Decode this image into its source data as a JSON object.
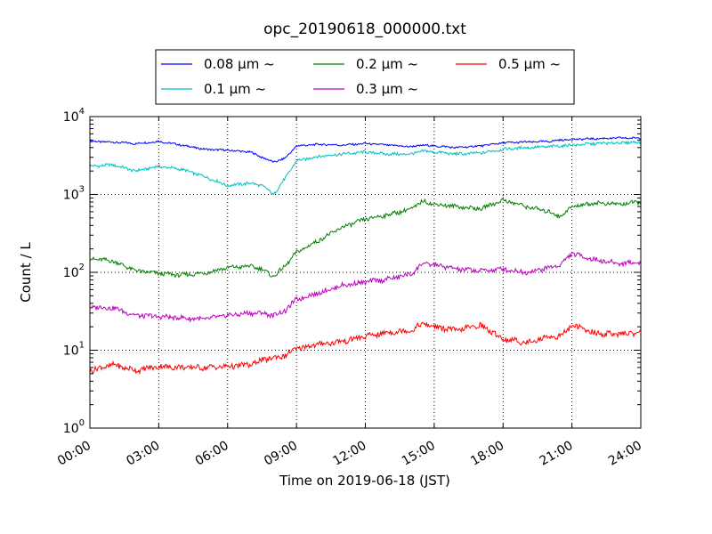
{
  "chart_data": {
    "type": "line",
    "title": "opc_20190618_000000.txt",
    "xlabel": "Time on 2019-06-18 (JST)",
    "ylabel": "Count / L",
    "yscale": "log",
    "ylim": [
      1,
      10000
    ],
    "xlim": [
      "00:00",
      "24:00"
    ],
    "x_ticks": [
      "00:00",
      "03:00",
      "06:00",
      "09:00",
      "12:00",
      "15:00",
      "18:00",
      "21:00",
      "24:00"
    ],
    "y_ticks": [
      {
        "base": "10",
        "exp": "0",
        "value": 1
      },
      {
        "base": "10",
        "exp": "1",
        "value": 10
      },
      {
        "base": "10",
        "exp": "2",
        "value": 100
      },
      {
        "base": "10",
        "exp": "3",
        "value": 1000
      },
      {
        "base": "10",
        "exp": "4",
        "value": 10000
      }
    ],
    "grid": true,
    "legend_position": "top-center",
    "x_hours": [
      0,
      1,
      2,
      3,
      4,
      5,
      6,
      7,
      7.5,
      8,
      8.5,
      9,
      10,
      11,
      12,
      13,
      14,
      14.5,
      15,
      16,
      17,
      18,
      19,
      20,
      20.5,
      21,
      22,
      23,
      24
    ],
    "series": [
      {
        "name": "0.08 μm ~",
        "color": "#0000ff",
        "values": [
          4800,
          4700,
          4500,
          4800,
          4300,
          3800,
          3700,
          3500,
          3000,
          2600,
          2900,
          4200,
          4400,
          4300,
          4500,
          4300,
          4100,
          4300,
          4200,
          4000,
          4200,
          4600,
          4700,
          4800,
          5000,
          5100,
          5200,
          5300,
          5300
        ]
      },
      {
        "name": "0.1 μm ~",
        "color": "#00bfbf",
        "values": [
          2300,
          2400,
          2000,
          2300,
          2100,
          1700,
          1300,
          1400,
          1300,
          1000,
          1600,
          2700,
          3100,
          3300,
          3500,
          3300,
          3300,
          3600,
          3500,
          3300,
          3400,
          3800,
          4000,
          4100,
          4200,
          4300,
          4500,
          4600,
          4700
        ]
      },
      {
        "name": "0.2 μm ~",
        "color": "#008000",
        "values": [
          150,
          140,
          105,
          97,
          92,
          98,
          115,
          120,
          110,
          88,
          120,
          180,
          260,
          380,
          480,
          550,
          650,
          820,
          750,
          700,
          650,
          850,
          700,
          600,
          520,
          700,
          780,
          750,
          800
        ]
      },
      {
        "name": "0.3 μm ~",
        "color": "#bf00bf",
        "values": [
          36,
          35,
          28,
          27,
          26,
          25,
          28,
          30,
          30,
          28,
          32,
          45,
          55,
          68,
          75,
          82,
          95,
          130,
          125,
          110,
          105,
          110,
          100,
          115,
          125,
          175,
          145,
          130,
          135
        ]
      },
      {
        "name": "0.5 μm ~",
        "color": "#ff0000",
        "values": [
          5.5,
          6.5,
          5.5,
          6.2,
          6.0,
          6.0,
          6.2,
          6.5,
          7.5,
          8.0,
          8.5,
          10.5,
          12.0,
          13.0,
          15.0,
          17.0,
          18.0,
          22.0,
          20.0,
          18.0,
          21.0,
          14.0,
          12.5,
          15.0,
          15.0,
          21.0,
          16.5,
          16.0,
          17.0
        ]
      }
    ]
  }
}
